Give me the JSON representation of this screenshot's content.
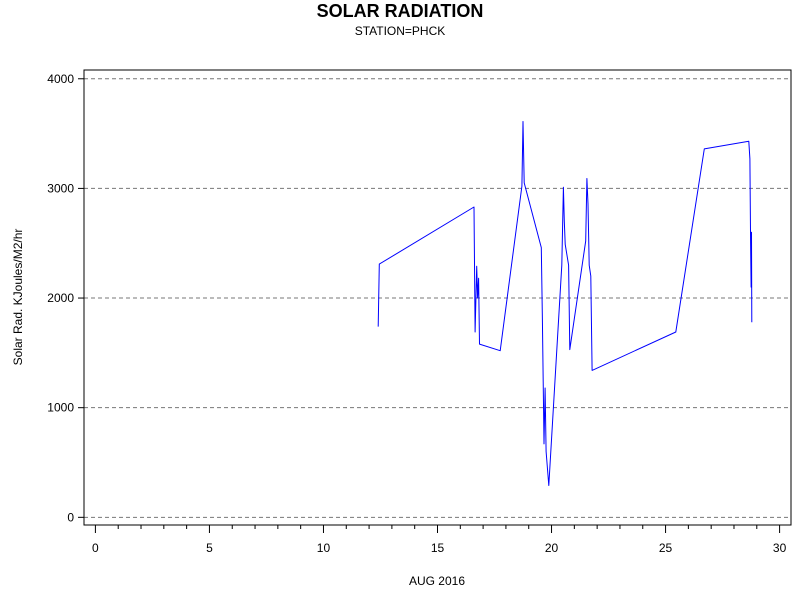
{
  "chart_data": {
    "type": "line",
    "title": "SOLAR RADIATION",
    "subtitle": "STATION=PHCK",
    "xlabel": "AUG 2016",
    "ylabel": "Solar Rad. KJoules/M2/hr",
    "xlim": [
      -0.5,
      30.5
    ],
    "ylim": [
      -70,
      4080
    ],
    "x_ticks": [
      0,
      5,
      10,
      15,
      20,
      25,
      30
    ],
    "x_tick_labels": [
      "0",
      "5",
      "10",
      "15",
      "20",
      "25",
      "30"
    ],
    "x_minor_step": 1,
    "y_ticks": [
      0,
      1000,
      2000,
      3000,
      4000
    ],
    "y_tick_labels": [
      "0",
      "1000",
      "2000",
      "3000",
      "4000"
    ],
    "grid": "horizontal dashed",
    "line_color": "#0000ff",
    "series": [
      {
        "x": [
          12.4,
          12.45,
          16.6,
          16.65,
          16.72,
          16.76,
          16.8,
          16.84,
          17.75,
          18.7,
          18.75,
          18.8,
          19.55,
          19.6,
          19.67,
          19.72,
          19.76,
          19.88,
          20.45,
          20.52,
          20.56,
          20.6,
          20.75,
          20.8,
          21.5,
          21.55,
          21.6,
          21.65,
          21.72,
          21.78,
          25.45,
          26.7,
          28.65,
          28.7,
          28.73,
          28.75,
          28.77,
          28.78
        ],
        "y": [
          1740,
          2310,
          2830,
          1690,
          2290,
          2000,
          2180,
          1580,
          1520,
          3020,
          3610,
          3050,
          2460,
          1800,
          670,
          1180,
          600,
          290,
          2300,
          3010,
          2700,
          2490,
          2300,
          1530,
          2520,
          3090,
          2860,
          2300,
          2200,
          1340,
          1690,
          3360,
          3430,
          3270,
          2500,
          2100,
          2600,
          1780
        ]
      }
    ]
  }
}
